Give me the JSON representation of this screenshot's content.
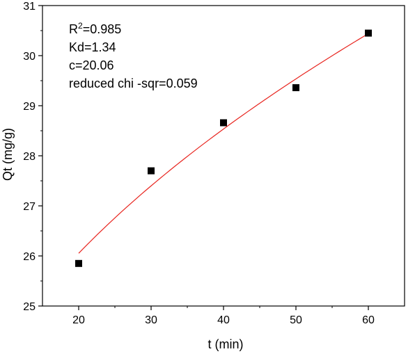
{
  "chart_data": {
    "type": "scatter",
    "title": "",
    "xlabel": "t (min)",
    "ylabel": "Qt (mg/g)",
    "xlim": [
      15,
      65
    ],
    "ylim": [
      25,
      31
    ],
    "xticks": [
      20,
      30,
      40,
      50,
      60
    ],
    "yticks": [
      25,
      26,
      27,
      28,
      29,
      30,
      31
    ],
    "grid": false,
    "series": [
      {
        "kind": "points",
        "marker": "square",
        "color": "#000000",
        "x": [
          20,
          30,
          40,
          50,
          60
        ],
        "y": [
          25.85,
          27.7,
          28.66,
          29.36,
          30.45
        ]
      },
      {
        "kind": "fit",
        "color": "#e8241e",
        "model": "Qt = Kd*sqrt(t) + c",
        "Kd": 1.34,
        "c": 20.06,
        "x_range": [
          20,
          60
        ]
      }
    ],
    "annotations": {
      "r2_prefix": "R",
      "r2_sup": "2",
      "r2_value": "=0.985",
      "kd": "Kd=1.34",
      "c": "c=20.06",
      "chi": "reduced chi -sqr=0.059"
    }
  }
}
